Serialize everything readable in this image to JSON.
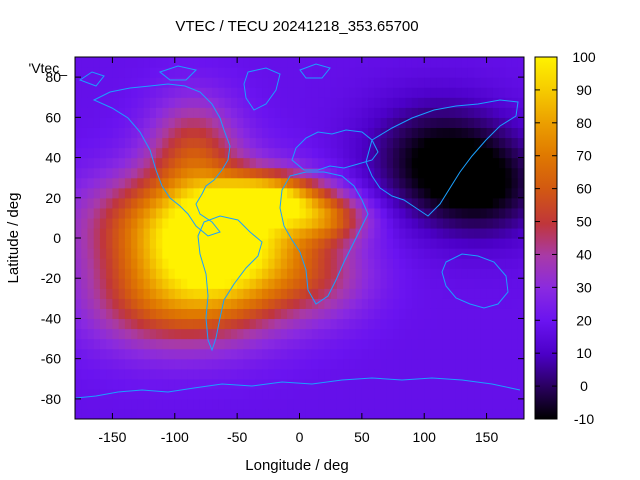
{
  "chart_data": {
    "type": "heatmap",
    "title": "VTEC / TECU 20241218_353.65700",
    "series_label": "'Vtec_",
    "xlabel": "Longitude / deg",
    "ylabel": "Latitude / deg",
    "xlim": [
      -180,
      180
    ],
    "ylim": [
      -90,
      90
    ],
    "x_ticks": [
      -150,
      -100,
      -50,
      0,
      50,
      100,
      150
    ],
    "y_ticks": [
      -80,
      -60,
      -40,
      -20,
      0,
      20,
      40,
      60,
      80
    ],
    "colorbar": {
      "min": -10,
      "max": 100,
      "ticks": [
        -10,
        0,
        10,
        20,
        30,
        40,
        50,
        60,
        70,
        80,
        90,
        100
      ]
    },
    "background_value": 18,
    "features": [
      {
        "name": "south-atlantic-crest",
        "lon": -55,
        "lat": -10,
        "value": 82,
        "sx": 45,
        "sy": 22
      },
      {
        "name": "central-america-crest",
        "lon": -90,
        "lat": 8,
        "value": 70,
        "sx": 55,
        "sy": 18
      },
      {
        "name": "north-atlantic-crest",
        "lon": -25,
        "lat": 20,
        "value": 74,
        "sx": 30,
        "sy": 8
      },
      {
        "name": "west-africa-tongue",
        "lon": 20,
        "lat": 10,
        "value": 52,
        "sx": 25,
        "sy": 8
      },
      {
        "name": "southern-pacific-lobe",
        "lon": -110,
        "lat": -30,
        "value": 52,
        "sx": 45,
        "sy": 18
      },
      {
        "name": "north-america-lobe",
        "lon": -85,
        "lat": 45,
        "value": 50,
        "sx": 25,
        "sy": 18
      },
      {
        "name": "africa-south-lobe",
        "lon": 20,
        "lat": -20,
        "value": 34,
        "sx": 30,
        "sy": 15
      },
      {
        "name": "asia-low",
        "lon": 110,
        "lat": 40,
        "value": -8,
        "sx": 40,
        "sy": 20
      },
      {
        "name": "pacific-low",
        "lon": 150,
        "lat": 25,
        "value": -4,
        "sx": 35,
        "sy": 18
      }
    ]
  }
}
